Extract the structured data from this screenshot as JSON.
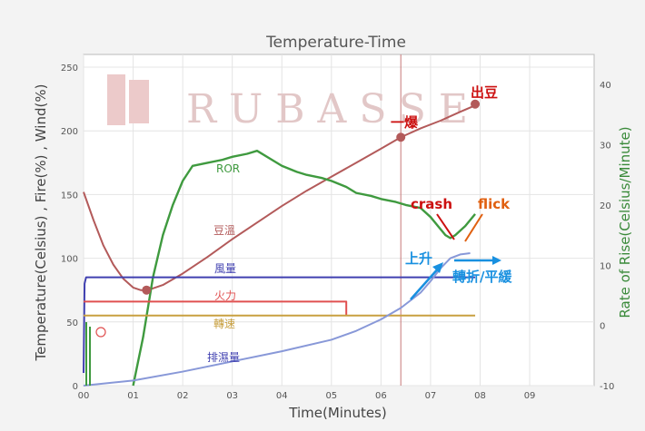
{
  "chart_data": {
    "type": "line",
    "title": "Temperature-Time",
    "xlabel": "Time(Minutes)",
    "ylabel": "Temperature(Celsius) , Fire(%) , Wind(%)",
    "y2label": "Rate of Rise(Celsius/Minute)",
    "watermark": "RUBASSE",
    "xlim": [
      0,
      10.3
    ],
    "ylim": [
      0,
      260
    ],
    "y2lim": [
      -10,
      45
    ],
    "x_ticks": [
      "00",
      "01",
      "02",
      "03",
      "04",
      "05",
      "06",
      "07",
      "08",
      "09"
    ],
    "y_ticks": [
      "0",
      "50",
      "100",
      "150",
      "200",
      "250"
    ],
    "y2_ticks": [
      "-10",
      "0",
      "10",
      "20",
      "30",
      "40"
    ],
    "grid": true,
    "colors": {
      "bean_temp": "#b35a5a",
      "ror": "#3f9a3f",
      "wind": "#4040b0",
      "fire": "#e05050",
      "drum_speed": "#c8a040",
      "exhaust_temp": "#8898d8",
      "annotation_red": "#cc1010",
      "annotation_orange": "#e06010",
      "annotation_blue": "#1890e0"
    },
    "series": [
      {
        "name": "豆溫",
        "color": "#b35a5a",
        "x": [
          0,
          0.2,
          0.4,
          0.6,
          0.8,
          1.0,
          1.15,
          1.3,
          1.6,
          2.0,
          2.5,
          3.0,
          3.5,
          4.0,
          4.5,
          5.0,
          5.5,
          6.0,
          6.4,
          6.8,
          7.2,
          7.6,
          7.9
        ],
        "y": [
          152,
          130,
          110,
          95,
          84,
          77,
          75,
          75,
          79,
          88,
          101,
          115,
          128,
          141,
          153,
          164,
          175,
          186,
          195,
          202,
          208,
          215,
          220
        ]
      },
      {
        "name": "ROR",
        "color": "#3f9a3f",
        "axis": "right",
        "x": [
          1.0,
          1.2,
          1.4,
          1.6,
          1.8,
          2.0,
          2.2,
          2.5,
          2.8,
          3.0,
          3.3,
          3.5,
          3.8,
          4.0,
          4.3,
          4.5,
          4.8,
          5.0,
          5.3,
          5.5,
          5.8,
          6.0,
          6.3,
          6.5,
          6.8,
          7.0,
          7.2,
          7.3,
          7.4,
          7.5,
          7.7,
          7.9
        ],
        "y": [
          -10,
          -2,
          8,
          15,
          20,
          24,
          26.5,
          27,
          27.5,
          28,
          28.5,
          29,
          27.5,
          26.5,
          25.5,
          25,
          24.5,
          24,
          23,
          22,
          21.5,
          21,
          20.5,
          20,
          19.5,
          18,
          16,
          15,
          14.5,
          15,
          16.5,
          18.5
        ]
      },
      {
        "name": "風量",
        "color": "#4040b0",
        "x": [
          0,
          0.02,
          0.05,
          7.9
        ],
        "y": [
          10,
          80,
          85,
          85
        ]
      },
      {
        "name": "火力",
        "color": "#e05050",
        "x": [
          0,
          5.3,
          5.3
        ],
        "y": [
          66,
          66,
          55
        ]
      },
      {
        "name": "轉速",
        "color": "#c8a040",
        "x": [
          0,
          7.9
        ],
        "y": [
          55,
          55
        ]
      },
      {
        "name": "排濕量",
        "color": "#8898d8",
        "x": [
          0,
          1.0,
          2.0,
          3.0,
          4.0,
          5.0,
          5.5,
          6.0,
          6.4,
          6.8,
          7.0,
          7.2,
          7.4,
          7.6,
          7.8
        ],
        "y": [
          0,
          4,
          11,
          19,
          27,
          36,
          43,
          52,
          61,
          73,
          82,
          92,
          100,
          103,
          104
        ]
      }
    ],
    "markers": [
      {
        "x": 1.27,
        "y": 75,
        "label": ""
      },
      {
        "x": 6.4,
        "y": 195,
        "label": "一爆"
      },
      {
        "x": 7.9,
        "y": 221,
        "label": "出豆"
      }
    ],
    "first_crack_line_x": 6.4,
    "annotations": [
      {
        "text": "crash",
        "color": "#cc1010"
      },
      {
        "text": "flick",
        "color": "#e06010"
      },
      {
        "text": "上升",
        "color": "#1890e0"
      },
      {
        "text": "轉折/平緩",
        "color": "#1890e0"
      }
    ]
  }
}
